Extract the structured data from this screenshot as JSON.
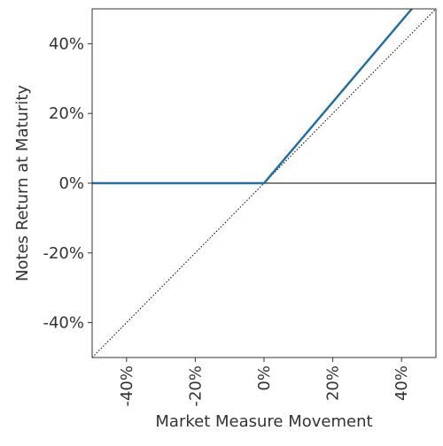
{
  "chart_data": {
    "type": "line",
    "x_label": "Market Measure Movement",
    "y_label": "Notes Return at Maturity",
    "x": [
      -50,
      0,
      43,
      50
    ],
    "series": [
      {
        "color": "#236fa1",
        "values": [
          0,
          0,
          50,
          null
        ],
        "style": "solid"
      },
      {
        "color": "#000000",
        "values": [
          -50,
          0,
          43,
          50
        ],
        "style": "dotted"
      }
    ],
    "xlim": [
      -50,
      50
    ],
    "ylim": [
      -50,
      50
    ],
    "xticks": [
      {
        "value": -40,
        "label": "-40%"
      },
      {
        "value": -20,
        "label": "-20%"
      },
      {
        "value": 0,
        "label": "0%"
      },
      {
        "value": 20,
        "label": "20%"
      },
      {
        "value": 40,
        "label": "40%"
      }
    ],
    "yticks": [
      {
        "value": -40,
        "label": "-40%"
      },
      {
        "value": -20,
        "label": "-20%"
      },
      {
        "value": 0,
        "label": "0%"
      },
      {
        "value": 20,
        "label": "20%"
      },
      {
        "value": 40,
        "label": "40%"
      }
    ],
    "zero_line": true
  }
}
